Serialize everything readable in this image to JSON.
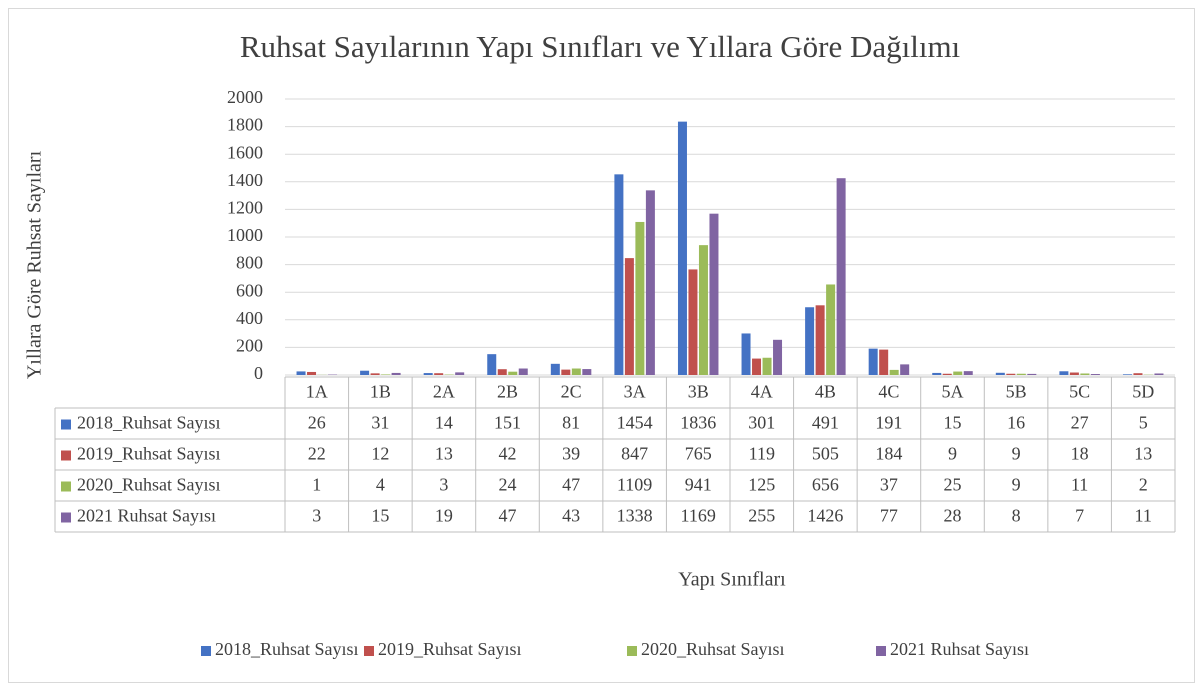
{
  "chart_data": {
    "type": "bar",
    "title": "Ruhsat Sayılarının Yapı Sınıfları ve Yıllara Göre Dağılımı",
    "x_label": "Yapı Sınıfları",
    "y_label": "Yıllara Göre Ruhsat Sayıları",
    "categories": [
      "1A",
      "1B",
      "2A",
      "2B",
      "2C",
      "3A",
      "3B",
      "4A",
      "4B",
      "4C",
      "5A",
      "5B",
      "5C",
      "5D"
    ],
    "series": [
      {
        "name": "2018_Ruhsat Sayısı",
        "color": "#4472c4",
        "values": [
          26,
          31,
          14,
          151,
          81,
          1454,
          1836,
          301,
          491,
          191,
          15,
          16,
          27,
          5
        ]
      },
      {
        "name": "2019_Ruhsat Sayısı",
        "color": "#c0504d",
        "values": [
          22,
          12,
          13,
          42,
          39,
          847,
          765,
          119,
          505,
          184,
          9,
          9,
          18,
          13
        ]
      },
      {
        "name": "2020_Ruhsat Sayısı",
        "color": "#9bbb59",
        "values": [
          1,
          4,
          3,
          24,
          47,
          1109,
          941,
          125,
          656,
          37,
          25,
          9,
          11,
          2
        ]
      },
      {
        "name": "2021 Ruhsat Sayısı",
        "color": "#8064a2",
        "values": [
          3,
          15,
          19,
          47,
          43,
          1338,
          1169,
          255,
          1426,
          77,
          28,
          8,
          7,
          11
        ]
      }
    ],
    "ylim": [
      0,
      2000
    ],
    "yticks": [
      0,
      200,
      400,
      600,
      800,
      1000,
      1200,
      1400,
      1600,
      1800,
      2000
    ],
    "grid": true,
    "legend": "bottom",
    "data_table": true
  }
}
